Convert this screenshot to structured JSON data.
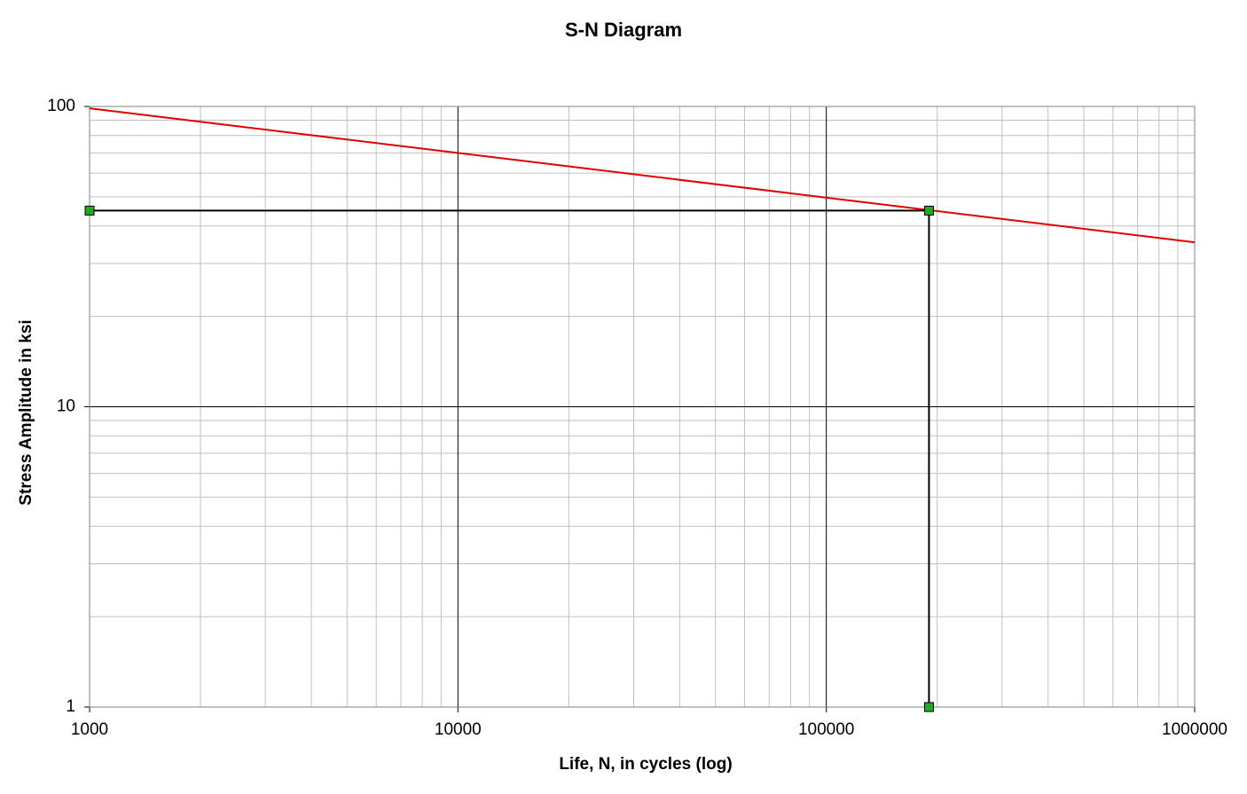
{
  "chart_data": {
    "type": "line",
    "title": "S-N Diagram",
    "x_label": "Life, N, in cycles (log)",
    "y_label": "Stress Amplitude in ksi",
    "xscale": "log",
    "yscale": "log",
    "xlim": [
      1000,
      1000000
    ],
    "ylim": [
      1,
      100
    ],
    "xticks": [
      1000,
      10000,
      100000,
      1000000
    ],
    "yticks": [
      1,
      10,
      100
    ],
    "grid": true,
    "minor_grid": true,
    "series": [
      {
        "color": "#e00000",
        "x": [
          1000,
          1000000
        ],
        "values": [
          98.6,
          35.3
        ]
      },
      {
        "color": "#000000",
        "marker_color": "#22aa22",
        "x": [
          1000,
          190000,
          190000
        ],
        "values": [
          45,
          45,
          1
        ]
      }
    ]
  }
}
